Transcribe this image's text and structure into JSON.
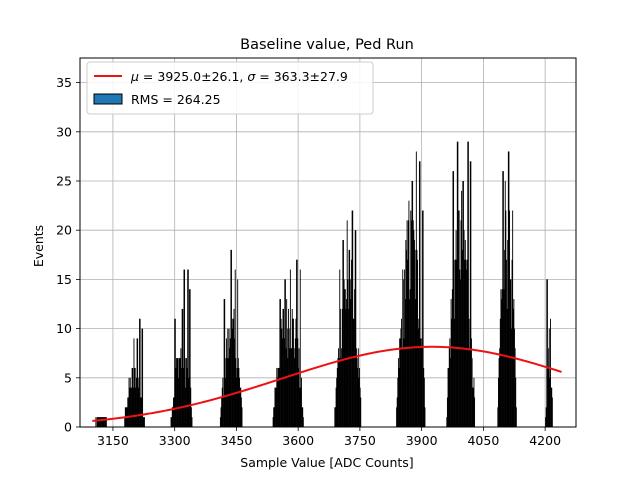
{
  "chart_data": {
    "type": "bar",
    "title": "Baseline value, Ped Run",
    "xlabel": "Sample Value [ADC Counts]",
    "ylabel": "Events",
    "xlim": [
      3070,
      4275
    ],
    "ylim": [
      0,
      37.5
    ],
    "x_ticks": [
      3150,
      3300,
      3450,
      3600,
      3750,
      3900,
      4050,
      4200
    ],
    "y_ticks": [
      0,
      5,
      10,
      15,
      20,
      25,
      30,
      35
    ],
    "grid": true,
    "legend_position": "top-left",
    "legend": [
      {
        "label_prefix": "μ",
        "label_mid": " = 3925.0±26.1, ",
        "label_sigma": "σ",
        "label_suffix": " = 363.3±27.9",
        "kind": "line",
        "color": "#ee1111"
      },
      {
        "label": "RMS = 264.25",
        "kind": "patch",
        "color": "#1f77b4"
      }
    ],
    "histogram": {
      "bin_width": 1.5,
      "color": "#000000",
      "clusters": [
        {
          "start": 3100,
          "end": 3142,
          "peak": 1,
          "spikes": [
            [
              3115,
              1
            ],
            [
              3130,
              1
            ]
          ]
        },
        {
          "start": 3176,
          "end": 3226,
          "peak": 6,
          "spikes": [
            [
              3208,
              9
            ],
            [
              3214,
              11
            ],
            [
              3220,
              10
            ],
            [
              3200,
              9
            ]
          ]
        },
        {
          "start": 3290,
          "end": 3342,
          "peak": 9,
          "spikes": [
            [
              3318,
              12
            ],
            [
              3322,
              16
            ],
            [
              3331,
              16
            ],
            [
              3300,
              11
            ],
            [
              3336,
              14
            ]
          ]
        },
        {
          "start": 3410,
          "end": 3464,
          "peak": 11,
          "spikes": [
            [
              3436,
              18
            ],
            [
              3446,
              16
            ],
            [
              3452,
              15
            ],
            [
              3420,
              13
            ]
          ]
        },
        {
          "start": 3538,
          "end": 3612,
          "peak": 13,
          "spikes": [
            [
              3580,
              16
            ],
            [
              3596,
              17
            ],
            [
              3604,
              16
            ],
            [
              3567,
              15
            ],
            [
              3555,
              13
            ]
          ]
        },
        {
          "start": 3688,
          "end": 3752,
          "peak": 17,
          "spikes": [
            [
              3718,
              21
            ],
            [
              3731,
              22
            ],
            [
              3738,
              20
            ],
            [
              3708,
              19
            ],
            [
              3700,
              16
            ]
          ]
        },
        {
          "start": 3838,
          "end": 3908,
          "peak": 21,
          "spikes": [
            [
              3876,
              25
            ],
            [
              3886,
              28
            ],
            [
              3894,
              27
            ],
            [
              3868,
              23
            ],
            [
              3902,
              22
            ]
          ]
        },
        {
          "start": 3960,
          "end": 4028,
          "peak": 23,
          "spikes": [
            [
              3986,
              29
            ],
            [
              4012,
              29
            ],
            [
              4018,
              27
            ],
            [
              3976,
              26
            ],
            [
              4000,
              25
            ]
          ]
        },
        {
          "start": 4084,
          "end": 4130,
          "peak": 21,
          "spikes": [
            [
              4097,
              26
            ],
            [
              4110,
              28
            ],
            [
              4102,
              25
            ],
            [
              4120,
              22
            ]
          ]
        },
        {
          "start": 4200,
          "end": 4218,
          "peak": 8,
          "spikes": [
            [
              4204,
              15
            ],
            [
              4212,
              11
            ],
            [
              4209,
              10
            ]
          ]
        }
      ]
    },
    "fit_curve": {
      "mu": 3925.0,
      "sigma": 363.3,
      "amplitude": 8.15,
      "x_range": [
        3100,
        4240
      ],
      "color": "#ee1111"
    }
  }
}
